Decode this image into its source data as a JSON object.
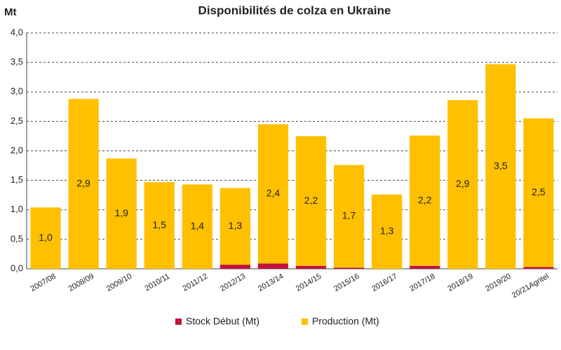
{
  "chart_data": {
    "type": "stacked_bar",
    "title": "Disponibilités de colza en Ukraine",
    "y_label": "Mt",
    "categories": [
      "2007/08",
      "2008/09",
      "2009/10",
      "2010/11",
      "2011/12",
      "2012/13",
      "2013/14",
      "2014/15",
      "2015/16",
      "2016/17",
      "2017/18",
      "2018/19",
      "2019/20",
      "20/21Agritel"
    ],
    "series": [
      {
        "name": "Stock Début (Mt)",
        "color": "#c0143c",
        "values": [
          0,
          0,
          0,
          0,
          0,
          0.07,
          0.09,
          0.05,
          0.02,
          0,
          0.05,
          0,
          0,
          0.03
        ]
      },
      {
        "name": "Production (Mt)",
        "color": "#ffc000",
        "values": [
          1.04,
          2.88,
          1.87,
          1.47,
          1.43,
          1.3,
          2.36,
          2.2,
          1.74,
          1.26,
          2.21,
          2.86,
          3.47,
          2.52
        ],
        "value_labels": [
          "1,0",
          "2,9",
          "1,9",
          "1,5",
          "1,4",
          "1,3",
          "2,4",
          "2,2",
          "1,7",
          "1,3",
          "2,2",
          "2,9",
          "3,5",
          "2,5"
        ]
      }
    ],
    "ylim": [
      0,
      4
    ],
    "yticks": [
      {
        "value": 0,
        "label": "0,0"
      },
      {
        "value": 0.5,
        "label": "0,5"
      },
      {
        "value": 1,
        "label": "1,0"
      },
      {
        "value": 1.5,
        "label": "1,5"
      },
      {
        "value": 2,
        "label": "2,0"
      },
      {
        "value": 2.5,
        "label": "2,5"
      },
      {
        "value": 3,
        "label": "3,0"
      },
      {
        "value": 3.5,
        "label": "3,5"
      },
      {
        "value": 4,
        "label": "4,0"
      }
    ],
    "grid": true,
    "legend": "bottom"
  }
}
